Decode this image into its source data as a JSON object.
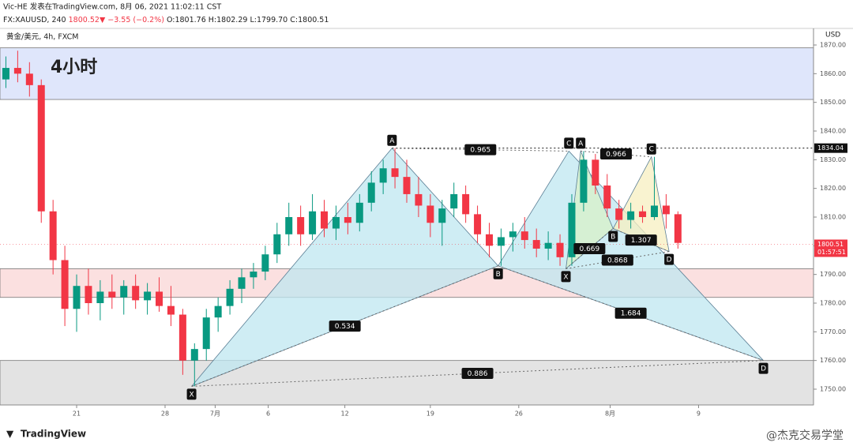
{
  "header": {
    "publisher": "Vic-HE 发表在TradingView.com, 8月 06, 2021 11:02:11 CST",
    "symbol": "FX:XAUUSD, 240",
    "last": "1800.52",
    "arrow": "▼",
    "change": "−3.55 (−0.2%)",
    "open": "O:1801.76",
    "high": "H:1802.29",
    "low": "L:1799.70",
    "close": "C:1800.51",
    "legend": "黄金/美元, 4h, FXCM",
    "currency": "USD",
    "logo": "TradingView",
    "watermark": "@杰克交易学堂"
  },
  "chart_data": {
    "type": "candlestick",
    "title": "4小时",
    "up_color": "#089981",
    "down_color": "#f23645",
    "xlim": [
      0,
      276
    ],
    "ylim": [
      1744.5,
      1875.5
    ],
    "grid": false,
    "xticks": [
      {
        "value": 26,
        "label": "21"
      },
      {
        "value": 56,
        "label": "28"
      },
      {
        "value": 73,
        "label": "7月"
      },
      {
        "value": 91,
        "label": "6"
      },
      {
        "value": 117,
        "label": "12"
      },
      {
        "value": 146,
        "label": "19"
      },
      {
        "value": 176,
        "label": "26"
      },
      {
        "value": 207,
        "label": "8月"
      },
      {
        "value": 237,
        "label": "9"
      }
    ],
    "yticks": [
      {
        "value": 1750,
        "label": "1750.00"
      },
      {
        "value": 1760,
        "label": "1760.00"
      },
      {
        "value": 1770,
        "label": "1770.00"
      },
      {
        "value": 1780,
        "label": "1780.00"
      },
      {
        "value": 1790,
        "label": "1790.00"
      },
      {
        "value": 1800,
        "label": "1800.00"
      },
      {
        "value": 1810,
        "label": "1810.00"
      },
      {
        "value": 1820,
        "label": "1820.00"
      },
      {
        "value": 1830,
        "label": "1830.00"
      },
      {
        "value": 1840,
        "label": "1840.00"
      },
      {
        "value": 1850,
        "label": "1850.00"
      },
      {
        "value": 1860,
        "label": "1860.00"
      },
      {
        "value": 1870,
        "label": "1870.00"
      }
    ],
    "x": [
      2,
      6,
      10,
      14,
      18,
      22,
      26,
      30,
      34,
      38,
      42,
      46,
      50,
      54,
      58,
      62,
      66,
      70,
      74,
      78,
      82,
      86,
      90,
      94,
      98,
      102,
      106,
      110,
      114,
      118,
      122,
      126,
      130,
      134,
      138,
      142,
      146,
      150,
      154,
      158,
      162,
      166,
      170,
      174,
      178,
      182,
      186,
      190,
      194,
      198,
      202,
      206,
      210,
      214,
      218,
      222,
      226,
      230
    ],
    "ohlc": [
      [
        1858,
        1866,
        1855,
        1862
      ],
      [
        1862,
        1868,
        1857,
        1860
      ],
      [
        1860,
        1864,
        1852,
        1856
      ],
      [
        1856,
        1858,
        1808,
        1812
      ],
      [
        1812,
        1816,
        1790,
        1795
      ],
      [
        1795,
        1800,
        1772,
        1778
      ],
      [
        1778,
        1790,
        1770,
        1786
      ],
      [
        1786,
        1792,
        1776,
        1780
      ],
      [
        1780,
        1788,
        1774,
        1784
      ],
      [
        1784,
        1790,
        1778,
        1782
      ],
      [
        1782,
        1788,
        1776,
        1786
      ],
      [
        1786,
        1790,
        1778,
        1781
      ],
      [
        1781,
        1787,
        1776,
        1784
      ],
      [
        1784,
        1789,
        1777,
        1779
      ],
      [
        1779,
        1786,
        1772,
        1776
      ],
      [
        1776,
        1778,
        1755,
        1760
      ],
      [
        1760,
        1766,
        1751,
        1764
      ],
      [
        1764,
        1778,
        1760,
        1775
      ],
      [
        1775,
        1782,
        1770,
        1779
      ],
      [
        1779,
        1788,
        1776,
        1785
      ],
      [
        1785,
        1792,
        1780,
        1789
      ],
      [
        1789,
        1794,
        1785,
        1791
      ],
      [
        1791,
        1800,
        1788,
        1797
      ],
      [
        1797,
        1808,
        1794,
        1804
      ],
      [
        1804,
        1815,
        1800,
        1810
      ],
      [
        1810,
        1814,
        1800,
        1804
      ],
      [
        1804,
        1818,
        1802,
        1812
      ],
      [
        1812,
        1816,
        1803,
        1806
      ],
      [
        1806,
        1814,
        1802,
        1810
      ],
      [
        1810,
        1815,
        1804,
        1808
      ],
      [
        1808,
        1818,
        1805,
        1815
      ],
      [
        1815,
        1826,
        1812,
        1822
      ],
      [
        1822,
        1830,
        1818,
        1827
      ],
      [
        1827,
        1834,
        1820,
        1824
      ],
      [
        1824,
        1830,
        1815,
        1818
      ],
      [
        1818,
        1824,
        1810,
        1814
      ],
      [
        1814,
        1818,
        1803,
        1808
      ],
      [
        1808,
        1816,
        1800,
        1813
      ],
      [
        1813,
        1822,
        1810,
        1818
      ],
      [
        1818,
        1821,
        1808,
        1811
      ],
      [
        1811,
        1814,
        1801,
        1804
      ],
      [
        1804,
        1808,
        1796,
        1800
      ],
      [
        1800,
        1806,
        1793,
        1803
      ],
      [
        1803,
        1808,
        1798,
        1805
      ],
      [
        1805,
        1810,
        1799,
        1802
      ],
      [
        1802,
        1806,
        1796,
        1799
      ],
      [
        1799,
        1805,
        1795,
        1801
      ],
      [
        1801,
        1804,
        1793,
        1796
      ],
      [
        1796,
        1818,
        1793,
        1815
      ],
      [
        1815,
        1833,
        1812,
        1830
      ],
      [
        1830,
        1832,
        1818,
        1821
      ],
      [
        1821,
        1825,
        1810,
        1813
      ],
      [
        1813,
        1816,
        1806,
        1809
      ],
      [
        1809,
        1815,
        1806,
        1812
      ],
      [
        1812,
        1814,
        1808,
        1810
      ],
      [
        1810,
        1831,
        1809,
        1814
      ],
      [
        1814,
        1818,
        1806,
        1811
      ],
      [
        1811,
        1812,
        1799,
        1801
      ]
    ],
    "zones": [
      {
        "from": 1851,
        "to": 1869,
        "color": "#dfe6fb"
      },
      {
        "from": 1782,
        "to": 1792,
        "color": "#fbe0e0"
      },
      {
        "from": 1744.5,
        "to": 1760,
        "color": "#e3e3e3"
      }
    ],
    "patterns": [
      {
        "colors": [
          "#bfe7f0",
          "#bfe7f0"
        ],
        "points": [
          {
            "label": "X",
            "x": 65,
            "y": 1751
          },
          {
            "label": "A",
            "x": 133,
            "y": 1834
          },
          {
            "label": "B",
            "x": 169,
            "y": 1793
          },
          {
            "label": "C",
            "x": 193,
            "y": 1833
          },
          {
            "label": "D",
            "x": 259,
            "y": 1760
          }
        ],
        "ratios": [
          0.534,
          0.965,
          1.684,
          0.886
        ]
      },
      {
        "colors": [
          "#d8f0c8",
          "#f7efc0"
        ],
        "points": [
          {
            "label": "X",
            "x": 192,
            "y": 1792
          },
          {
            "label": "A",
            "x": 197,
            "y": 1833
          },
          {
            "label": "B",
            "x": 208,
            "y": 1806
          },
          {
            "label": "C",
            "x": 221,
            "y": 1831
          },
          {
            "label": "D",
            "x": 227,
            "y": 1798
          }
        ],
        "ratios": [
          0.669,
          0.966,
          1.307,
          0.868
        ]
      }
    ],
    "level": 1834.04,
    "last_price": 1800.51,
    "countdown": "01:57:51"
  }
}
